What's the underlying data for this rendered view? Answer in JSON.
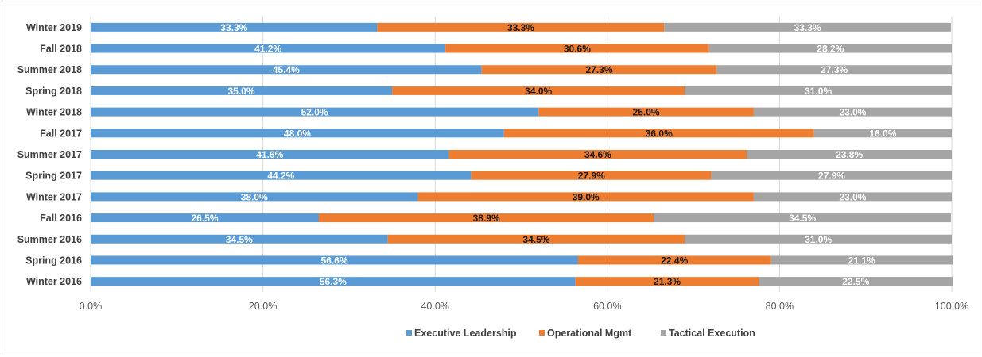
{
  "chart_data": {
    "type": "bar",
    "orientation": "horizontal",
    "stacked": "percent",
    "categories": [
      "Winter 2019",
      "Fall 2018",
      "Summer 2018",
      "Spring 2018",
      "Winter 2018",
      "Fall 2017",
      "Summer 2017",
      "Spring 2017",
      "Winter 2017",
      "Fall 2016",
      "Summer 2016",
      "Spring 2016",
      "Winter 2016"
    ],
    "series": [
      {
        "name": "Executive Leadership",
        "color": "#5b9bd5",
        "values": [
          33.3,
          41.2,
          45.4,
          35.0,
          52.0,
          48.0,
          41.6,
          44.2,
          38.0,
          26.5,
          34.5,
          56.6,
          56.3
        ]
      },
      {
        "name": "Operational Mgmt",
        "color": "#ed7d31",
        "values": [
          33.3,
          30.6,
          27.3,
          34.0,
          25.0,
          36.0,
          34.6,
          27.9,
          39.0,
          38.9,
          34.5,
          22.4,
          21.3
        ]
      },
      {
        "name": "Tactical Execution",
        "color": "#a5a5a5",
        "values": [
          33.3,
          28.2,
          27.3,
          31.0,
          23.0,
          16.0,
          23.8,
          27.9,
          23.0,
          34.5,
          31.0,
          21.1,
          22.5
        ]
      }
    ],
    "x_ticks": [
      "0.0%",
      "20.0%",
      "40.0%",
      "60.0%",
      "80.0%",
      "100.0%"
    ],
    "xlim": [
      0,
      100
    ],
    "data_labels": true,
    "legend_position": "bottom",
    "grid": "vertical",
    "title": "",
    "xlabel": "",
    "ylabel": ""
  }
}
